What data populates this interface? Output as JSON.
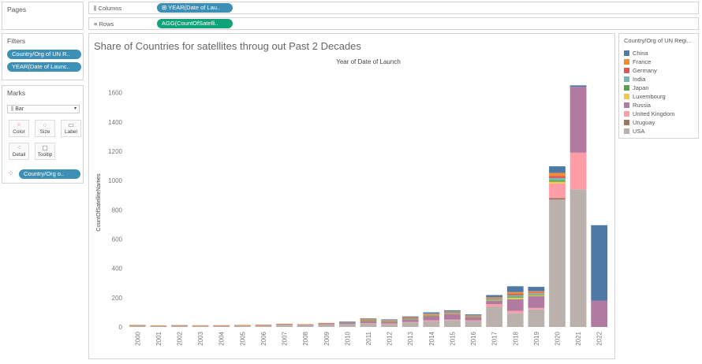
{
  "left_panel": {
    "pages_title": "Pages",
    "filters_title": "Filters",
    "filters": [
      "Country/Org of UN R..",
      "YEAR(Date of Launc.."
    ],
    "marks_title": "Marks",
    "mark_type": "Bar",
    "mark_buttons": [
      "Color",
      "Size",
      "Label",
      "Detail",
      "Tooltip"
    ],
    "color_pill": "Country/Org o.."
  },
  "shelves": {
    "columns_label": "Columns",
    "columns_pill": "YEAR(Date of Lau..",
    "rows_label": "Rows",
    "rows_pill": "AGG(CountOfSatelli.."
  },
  "legend": {
    "title": "Country/Org of UN Regi...",
    "items": [
      {
        "name": "China",
        "color": "#4e79a7"
      },
      {
        "name": "France",
        "color": "#f28e2b"
      },
      {
        "name": "Germany",
        "color": "#e15759"
      },
      {
        "name": "India",
        "color": "#76b7b2"
      },
      {
        "name": "Japan",
        "color": "#59a14f"
      },
      {
        "name": "Luxembourg",
        "color": "#edc948"
      },
      {
        "name": "Russia",
        "color": "#b07aa1"
      },
      {
        "name": "United Kingdom",
        "color": "#ff9da7"
      },
      {
        "name": "Uruguay",
        "color": "#9c755f"
      },
      {
        "name": "USA",
        "color": "#bab0ac"
      }
    ]
  },
  "chart_data": {
    "type": "bar",
    "title": "Share of Countries for satellites throug out Past 2 Decades",
    "top_axis_label": "Year of Date of Launch",
    "ylabel": "CountOfSatelliteNames",
    "ylim": [
      0,
      1700
    ],
    "yticks": [
      0,
      200,
      400,
      600,
      800,
      1000,
      1200,
      1400,
      1600
    ],
    "categories": [
      "2000",
      "2001",
      "2002",
      "2003",
      "2004",
      "2005",
      "2006",
      "2007",
      "2008",
      "2009",
      "2010",
      "2011",
      "2012",
      "2013",
      "2014",
      "2015",
      "2016",
      "2017",
      "2018",
      "2019",
      "2020",
      "2021",
      "2022"
    ],
    "series": [
      {
        "name": "USA",
        "values": [
          10,
          6,
          8,
          7,
          8,
          9,
          10,
          15,
          13,
          18,
          20,
          25,
          20,
          30,
          40,
          45,
          40,
          140,
          95,
          120,
          870,
          940,
          0
        ]
      },
      {
        "name": "Uruguay",
        "values": [
          0,
          0,
          0,
          0,
          0,
          0,
          0,
          0,
          0,
          0,
          0,
          0,
          0,
          0,
          0,
          0,
          0,
          0,
          0,
          0,
          10,
          0,
          0
        ]
      },
      {
        "name": "United Kingdom",
        "values": [
          0,
          0,
          0,
          0,
          0,
          0,
          0,
          0,
          0,
          0,
          0,
          2,
          3,
          4,
          6,
          5,
          5,
          15,
          15,
          10,
          100,
          250,
          0
        ]
      },
      {
        "name": "Russia",
        "values": [
          2,
          2,
          3,
          3,
          2,
          3,
          4,
          5,
          4,
          8,
          10,
          12,
          12,
          18,
          30,
          40,
          22,
          25,
          80,
          80,
          0,
          450,
          180
        ]
      },
      {
        "name": "Luxembourg",
        "values": [
          0,
          0,
          0,
          0,
          0,
          0,
          0,
          0,
          0,
          0,
          0,
          2,
          2,
          2,
          2,
          2,
          2,
          4,
          10,
          6,
          12,
          0,
          0
        ]
      },
      {
        "name": "Japan",
        "values": [
          0,
          0,
          0,
          0,
          0,
          0,
          0,
          0,
          0,
          0,
          0,
          2,
          2,
          2,
          3,
          3,
          2,
          4,
          8,
          6,
          10,
          0,
          0
        ]
      },
      {
        "name": "India",
        "values": [
          0,
          0,
          0,
          0,
          0,
          0,
          0,
          0,
          0,
          0,
          2,
          3,
          3,
          4,
          4,
          4,
          3,
          5,
          10,
          8,
          15,
          0,
          0
        ]
      },
      {
        "name": "Germany",
        "values": [
          0,
          0,
          0,
          0,
          0,
          0,
          0,
          0,
          0,
          0,
          0,
          2,
          2,
          2,
          3,
          3,
          2,
          4,
          8,
          6,
          15,
          0,
          0
        ]
      },
      {
        "name": "France",
        "values": [
          2,
          2,
          2,
          2,
          2,
          2,
          2,
          2,
          2,
          2,
          3,
          5,
          3,
          4,
          4,
          4,
          3,
          6,
          12,
          8,
          20,
          0,
          0
        ]
      },
      {
        "name": "China",
        "values": [
          0,
          0,
          0,
          0,
          0,
          0,
          0,
          0,
          0,
          0,
          2,
          5,
          5,
          6,
          8,
          8,
          7,
          15,
          40,
          30,
          45,
          10,
          515
        ]
      }
    ],
    "legend_position": "right",
    "grid": false
  }
}
